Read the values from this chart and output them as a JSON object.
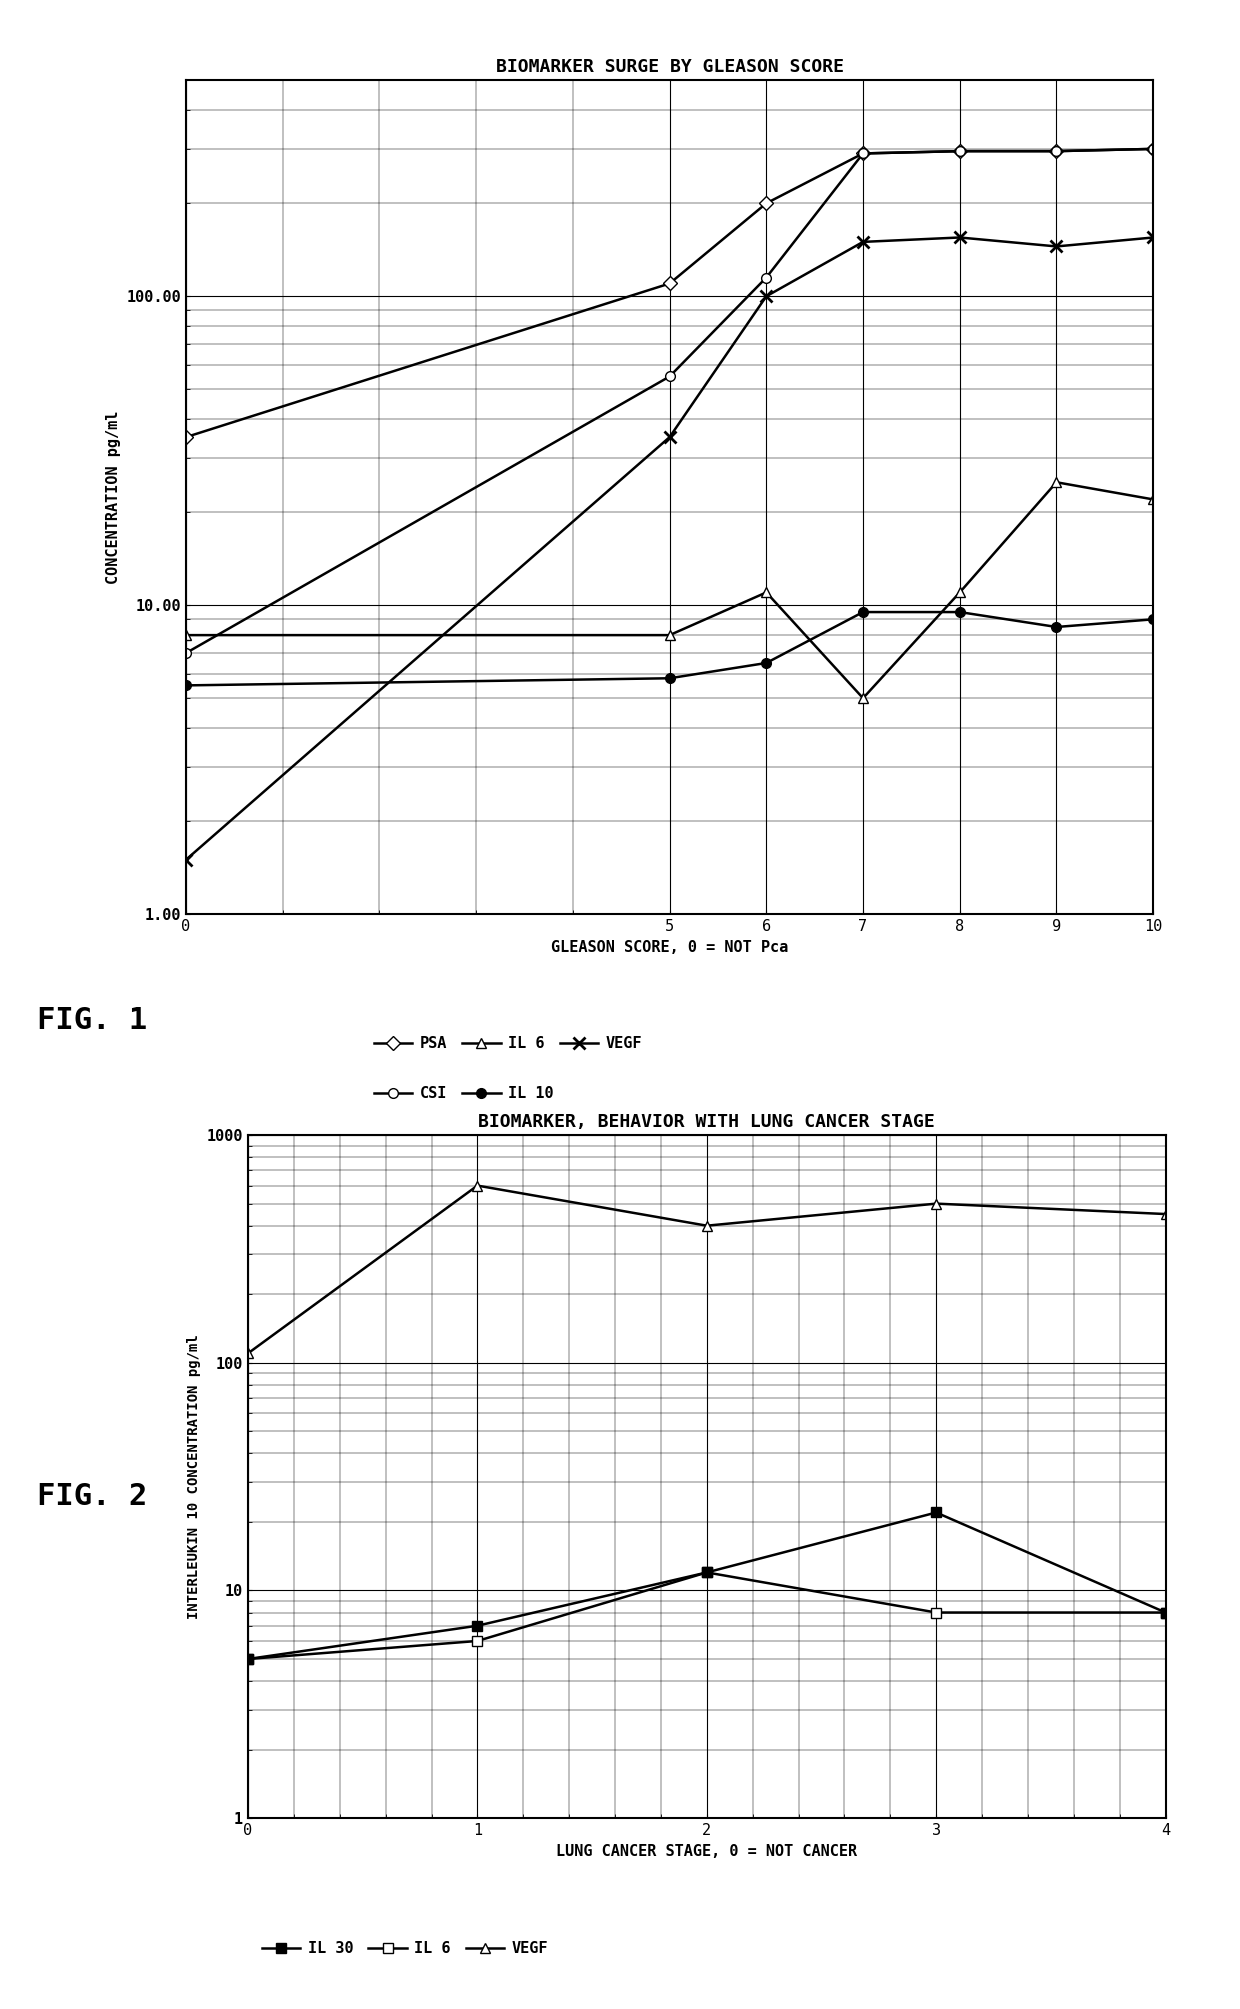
{
  "fig1": {
    "title": "BIOMARKER SURGE BY GLEASON SCORE",
    "xlabel": "GLEASON SCORE, 0 = NOT Pca",
    "ylabel": "CONCENTRATION pg/ml",
    "xdata": [
      0,
      5,
      6,
      7,
      8,
      9,
      10
    ],
    "PSA": [
      35,
      110,
      200,
      290,
      295,
      295,
      300
    ],
    "CSI": [
      7,
      55,
      115,
      290,
      295,
      295,
      300
    ],
    "IL6": [
      8,
      8,
      11,
      5,
      11,
      25,
      22
    ],
    "IL10": [
      5.5,
      5.8,
      6.5,
      9.5,
      9.5,
      8.5,
      9.0
    ],
    "VEGF": [
      1.5,
      35,
      100,
      150,
      155,
      145,
      155
    ],
    "ylim_min": 1.0,
    "ylim_max": 500,
    "xlim_min": 0,
    "xlim_max": 10,
    "ytick_vals": [
      1.0,
      10.0,
      100.0
    ],
    "yticklabels": [
      "1.00",
      "10.00",
      "100.00"
    ],
    "xticks": [
      0,
      5,
      6,
      7,
      8,
      9,
      10
    ]
  },
  "fig2": {
    "title": "BIOMARKER, BEHAVIOR WITH LUNG CANCER STAGE",
    "xlabel": "LUNG CANCER STAGE, 0 = NOT CANCER",
    "ylabel": "INTERLEUKIN 10 CONCENTRATION pg/ml",
    "xdata": [
      0,
      1,
      2,
      3,
      4
    ],
    "VEGF": [
      110,
      600,
      400,
      500,
      450
    ],
    "IL6": [
      5,
      6,
      12,
      8,
      8
    ],
    "IL30": [
      5,
      7,
      12,
      22,
      8
    ],
    "ylim_min": 1.0,
    "ylim_max": 1000,
    "xlim_min": 0,
    "xlim_max": 4,
    "ytick_vals": [
      1,
      10,
      100,
      1000
    ],
    "yticklabels": [
      "1",
      "10",
      "100",
      "1000"
    ],
    "xticks": [
      0,
      1,
      2,
      3,
      4
    ]
  },
  "fig1_label": "FIG. 1",
  "fig2_label": "FIG. 2",
  "background_color": "#ffffff"
}
